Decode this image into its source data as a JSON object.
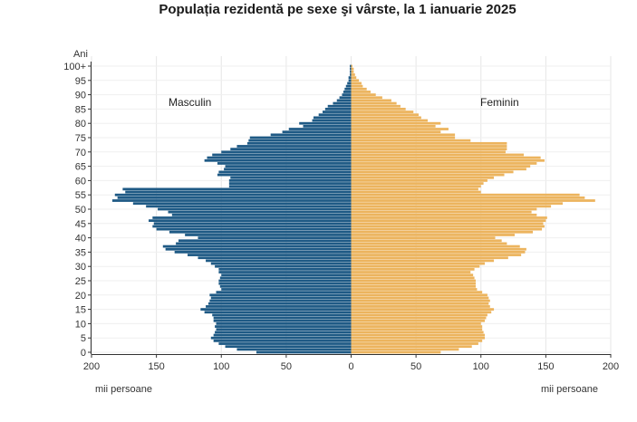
{
  "chart_data": {
    "type": "bar",
    "orientation": "horizontal-population-pyramid",
    "title": "Populația rezidentă pe sexe şi vârste, la 1 ianuarie 2025",
    "ylabel": "Ani",
    "xlabel_left": "mii persoane",
    "xlabel_right": "mii persoane",
    "xlim": [
      0,
      200
    ],
    "x_ticks": [
      200,
      150,
      100,
      50,
      0,
      50,
      100,
      150,
      200
    ],
    "y_ticks": [
      "100+",
      "95",
      "90",
      "85",
      "80",
      "75",
      "70",
      "65",
      "60",
      "55",
      "50",
      "45",
      "40",
      "35",
      "30",
      "25",
      "20",
      "15",
      "10",
      "5",
      "0"
    ],
    "ages": [
      "0",
      "1",
      "2",
      "3",
      "4",
      "5",
      "6",
      "7",
      "8",
      "9",
      "10",
      "11",
      "12",
      "13",
      "14",
      "15",
      "16",
      "17",
      "18",
      "19",
      "20",
      "21",
      "22",
      "23",
      "24",
      "25",
      "26",
      "27",
      "28",
      "29",
      "30",
      "31",
      "32",
      "33",
      "34",
      "35",
      "36",
      "37",
      "38",
      "39",
      "40",
      "41",
      "42",
      "43",
      "44",
      "45",
      "46",
      "47",
      "48",
      "49",
      "50",
      "51",
      "52",
      "53",
      "54",
      "55",
      "56",
      "57",
      "58",
      "59",
      "60",
      "61",
      "62",
      "63",
      "64",
      "65",
      "66",
      "67",
      "68",
      "69",
      "70",
      "71",
      "72",
      "73",
      "74",
      "75",
      "76",
      "77",
      "78",
      "79",
      "80",
      "81",
      "82",
      "83",
      "84",
      "85",
      "86",
      "87",
      "88",
      "89",
      "90",
      "91",
      "92",
      "93",
      "94",
      "95",
      "96",
      "97",
      "98",
      "99",
      "100+"
    ],
    "series": [
      {
        "name": "Masculin",
        "color": "#1f5a85",
        "values": [
          73,
          88,
          97,
          102,
          106,
          108,
          106,
          105,
          104,
          105,
          104,
          106,
          106,
          107,
          113,
          116,
          112,
          110,
          109,
          108,
          109,
          104,
          100,
          101,
          102,
          102,
          101,
          100,
          102,
          102,
          105,
          108,
          112,
          118,
          126,
          136,
          143,
          145,
          135,
          133,
          118,
          128,
          140,
          150,
          153,
          152,
          156,
          153,
          138,
          141,
          149,
          158,
          168,
          184,
          180,
          182,
          174,
          176,
          94,
          94,
          94,
          93,
          103,
          102,
          98,
          97,
          103,
          113,
          111,
          107,
          100,
          93,
          88,
          80,
          79,
          78,
          62,
          53,
          48,
          37,
          40,
          30,
          29,
          25,
          22,
          20,
          18,
          14,
          11,
          9,
          7,
          6,
          5,
          4,
          3,
          2,
          2,
          1,
          1,
          1,
          1
        ]
      },
      {
        "name": "Feminin",
        "color": "#ecb45e",
        "values": [
          69,
          83,
          93,
          98,
          101,
          103,
          103,
          102,
          101,
          101,
          100,
          103,
          104,
          105,
          108,
          110,
          107,
          106,
          107,
          106,
          105,
          101,
          97,
          96,
          96,
          96,
          95,
          94,
          92,
          95,
          99,
          103,
          110,
          121,
          131,
          134,
          135,
          130,
          120,
          116,
          111,
          126,
          140,
          147,
          149,
          148,
          150,
          151,
          143,
          139,
          143,
          154,
          163,
          188,
          180,
          176,
          100,
          98,
          100,
          102,
          105,
          110,
          118,
          125,
          135,
          138,
          143,
          149,
          146,
          133,
          119,
          120,
          120,
          120,
          92,
          80,
          80,
          69,
          75,
          65,
          69,
          59,
          54,
          52,
          48,
          42,
          38,
          35,
          31,
          24,
          19,
          15,
          12,
          9,
          8,
          6,
          4,
          3,
          2,
          2,
          1
        ]
      }
    ],
    "grid": true,
    "legend": "series names printed inside plot, upper-left (Masculin) and upper-right (Feminin)"
  }
}
